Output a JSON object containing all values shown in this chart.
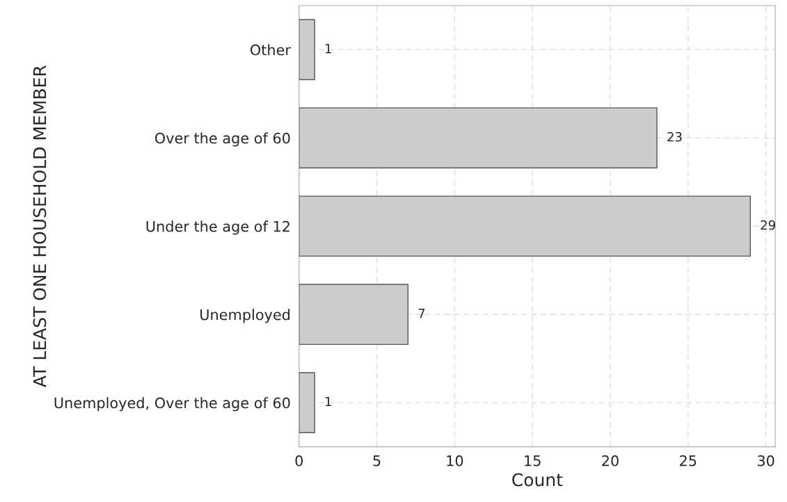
{
  "chart_data": {
    "type": "bar",
    "orientation": "horizontal",
    "xlabel": "Count",
    "ylabel": "AT LEAST ONE HOUSEHOLD MEMBER",
    "categories": [
      "Other",
      "Over the age of 60",
      "Under the age of 12",
      "Unemployed",
      "Unemployed, Over the age of 60"
    ],
    "values": [
      1,
      23,
      29,
      7,
      1
    ],
    "color": "#cccccc",
    "data_labels": true,
    "grid": true,
    "xlim": [
      0,
      30.6
    ],
    "xticks": [
      0,
      5,
      10,
      15,
      20,
      25,
      30
    ]
  }
}
